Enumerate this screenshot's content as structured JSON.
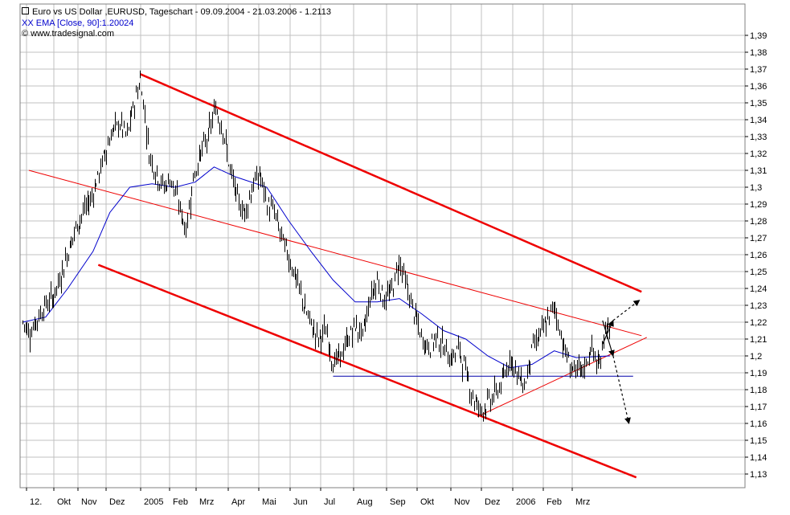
{
  "header": {
    "line1": "Euro vs US Dollar ,EURUSD, Tageschart - 09.09.2004 - 21.03.2006 - 1.2113",
    "line2": "XX EMA [Close, 90]:1.20024",
    "line3": "© www.tradesignal.com"
  },
  "colors": {
    "price": "#000000",
    "ema": "#0000cc",
    "channel": "#ee0000",
    "support": "#0000aa",
    "grid": "#c0c0c0"
  },
  "chart_data": {
    "type": "candlestick",
    "x_tick_labels": [
      "12.",
      "Okt",
      "Nov",
      "Dez",
      "2005",
      "Feb",
      "Mrz",
      "Apr",
      "Mai",
      "Jun",
      "Jul",
      "Aug",
      "Sep",
      "Okt",
      "Nov",
      "Dez",
      "2006",
      "Feb",
      "Mrz"
    ],
    "y_tick_labels": [
      "1,39",
      "1,38",
      "1,37",
      "1,36",
      "1,35",
      "1,34",
      "1,33",
      "1,32",
      "1,31",
      "1,3",
      "1,29",
      "1,28",
      "1,27",
      "1,26",
      "1,25",
      "1,24",
      "1,23",
      "1,22",
      "1,21",
      "1,2",
      "1,19",
      "1,18",
      "1,17",
      "1,16",
      "1,15",
      "1,14",
      "1,13"
    ],
    "ylim": [
      1.125,
      1.397
    ],
    "price_path": [
      [
        "2004-09-09",
        1.22
      ],
      [
        "2004-09-16",
        1.214
      ],
      [
        "2004-09-23",
        1.222
      ],
      [
        "2004-09-30",
        1.23
      ],
      [
        "2004-10-08",
        1.235
      ],
      [
        "2004-10-15",
        1.247
      ],
      [
        "2004-10-22",
        1.262
      ],
      [
        "2004-10-29",
        1.275
      ],
      [
        "2004-11-05",
        1.285
      ],
      [
        "2004-11-12",
        1.292
      ],
      [
        "2004-11-19",
        1.305
      ],
      [
        "2004-11-26",
        1.32
      ],
      [
        "2004-12-03",
        1.333
      ],
      [
        "2004-12-10",
        1.338
      ],
      [
        "2004-12-17",
        1.33
      ],
      [
        "2004-12-24",
        1.35
      ],
      [
        "2004-12-30",
        1.365
      ],
      [
        "2005-01-07",
        1.32
      ],
      [
        "2005-01-14",
        1.308
      ],
      [
        "2005-01-21",
        1.3
      ],
      [
        "2005-01-28",
        1.305
      ],
      [
        "2005-02-04",
        1.29
      ],
      [
        "2005-02-11",
        1.275
      ],
      [
        "2005-02-18",
        1.305
      ],
      [
        "2005-02-25",
        1.32
      ],
      [
        "2005-03-04",
        1.33
      ],
      [
        "2005-03-11",
        1.347
      ],
      [
        "2005-03-18",
        1.335
      ],
      [
        "2005-03-25",
        1.31
      ],
      [
        "2005-04-01",
        1.292
      ],
      [
        "2005-04-08",
        1.285
      ],
      [
        "2005-04-15",
        1.3
      ],
      [
        "2005-04-22",
        1.308
      ],
      [
        "2005-04-29",
        1.29
      ],
      [
        "2005-05-06",
        1.285
      ],
      [
        "2005-05-13",
        1.27
      ],
      [
        "2005-05-20",
        1.258
      ],
      [
        "2005-05-27",
        1.245
      ],
      [
        "2005-06-03",
        1.23
      ],
      [
        "2005-06-10",
        1.218
      ],
      [
        "2005-06-17",
        1.21
      ],
      [
        "2005-06-24",
        1.215
      ],
      [
        "2005-07-01",
        1.195
      ],
      [
        "2005-07-08",
        1.2
      ],
      [
        "2005-07-15",
        1.21
      ],
      [
        "2005-07-22",
        1.218
      ],
      [
        "2005-07-29",
        1.212
      ],
      [
        "2005-08-05",
        1.235
      ],
      [
        "2005-08-12",
        1.245
      ],
      [
        "2005-08-19",
        1.232
      ],
      [
        "2005-08-26",
        1.24
      ],
      [
        "2005-09-02",
        1.257
      ],
      [
        "2005-09-09",
        1.24
      ],
      [
        "2005-09-16",
        1.225
      ],
      [
        "2005-09-23",
        1.21
      ],
      [
        "2005-09-30",
        1.205
      ],
      [
        "2005-10-07",
        1.212
      ],
      [
        "2005-10-14",
        1.205
      ],
      [
        "2005-10-21",
        1.198
      ],
      [
        "2005-10-28",
        1.205
      ],
      [
        "2005-11-04",
        1.19
      ],
      [
        "2005-11-11",
        1.175
      ],
      [
        "2005-11-18",
        1.168
      ],
      [
        "2005-11-25",
        1.172
      ],
      [
        "2005-12-02",
        1.178
      ],
      [
        "2005-12-09",
        1.185
      ],
      [
        "2005-12-16",
        1.2
      ],
      [
        "2005-12-23",
        1.188
      ],
      [
        "2005-12-30",
        1.183
      ],
      [
        "2006-01-06",
        1.205
      ],
      [
        "2006-01-13",
        1.212
      ],
      [
        "2006-01-20",
        1.22
      ],
      [
        "2006-01-27",
        1.23
      ],
      [
        "2006-02-03",
        1.21
      ],
      [
        "2006-02-10",
        1.195
      ],
      [
        "2006-02-17",
        1.19
      ],
      [
        "2006-02-24",
        1.192
      ],
      [
        "2006-03-03",
        1.205
      ],
      [
        "2006-03-10",
        1.192
      ],
      [
        "2006-03-17",
        1.22
      ],
      [
        "2006-03-21",
        1.211
      ]
    ],
    "ema_path": [
      [
        "2004-09-09",
        1.22
      ],
      [
        "2004-10-01",
        1.223
      ],
      [
        "2004-10-22",
        1.24
      ],
      [
        "2004-11-15",
        1.262
      ],
      [
        "2004-12-01",
        1.285
      ],
      [
        "2004-12-20",
        1.3
      ],
      [
        "2005-01-10",
        1.302
      ],
      [
        "2005-02-01",
        1.3
      ],
      [
        "2005-02-20",
        1.303
      ],
      [
        "2005-03-10",
        1.312
      ],
      [
        "2005-03-31",
        1.306
      ],
      [
        "2005-04-29",
        1.3
      ],
      [
        "2005-05-20",
        1.28
      ],
      [
        "2005-06-10",
        1.262
      ],
      [
        "2005-07-01",
        1.245
      ],
      [
        "2005-07-22",
        1.232
      ],
      [
        "2005-08-12",
        1.232
      ],
      [
        "2005-09-02",
        1.234
      ],
      [
        "2005-09-23",
        1.225
      ],
      [
        "2005-10-14",
        1.215
      ],
      [
        "2005-11-04",
        1.21
      ],
      [
        "2005-11-25",
        1.2
      ],
      [
        "2005-12-16",
        1.193
      ],
      [
        "2006-01-06",
        1.195
      ],
      [
        "2006-01-27",
        1.203
      ],
      [
        "2006-02-17",
        1.199
      ],
      [
        "2006-03-21",
        1.2
      ]
    ],
    "annotations": [
      {
        "kind": "channel_upper",
        "from": [
          "2004-12-30",
          1.367
        ],
        "to": [
          "2006-04-20",
          1.238
        ],
        "color": "#ee0000",
        "width": 2.5
      },
      {
        "kind": "channel_middle",
        "from": [
          "2004-09-15",
          1.31
        ],
        "to": [
          "2006-04-20",
          1.212
        ],
        "color": "#ee0000",
        "width": 1
      },
      {
        "kind": "channel_lower",
        "from": [
          "2004-11-20",
          1.254
        ],
        "to": [
          "2006-04-15",
          1.128
        ],
        "color": "#ee0000",
        "width": 2.5
      },
      {
        "kind": "rising_support",
        "from": [
          "2005-11-15",
          1.164
        ],
        "to": [
          "2006-04-25",
          1.211
        ],
        "color": "#ee0000",
        "width": 1
      },
      {
        "kind": "horizontal_support",
        "from": [
          "2005-07-01",
          1.188
        ],
        "to": [
          "2006-04-12",
          1.188
        ],
        "color": "#0000aa",
        "width": 1
      },
      {
        "kind": "scenario_up",
        "points": [
          [
            "2006-03-14",
            1.207
          ],
          [
            "2006-03-24",
            1.221
          ]
        ],
        "style": "solid"
      },
      {
        "kind": "scenario_up_ext",
        "points": [
          [
            "2006-03-24",
            1.221
          ],
          [
            "2006-04-18",
            1.233
          ]
        ],
        "style": "dashed"
      },
      {
        "kind": "scenario_down",
        "points": [
          [
            "2006-03-14",
            1.221
          ],
          [
            "2006-03-24",
            1.2
          ]
        ],
        "style": "solid"
      },
      {
        "kind": "scenario_down_ext",
        "points": [
          [
            "2006-03-24",
            1.2
          ],
          [
            "2006-04-08",
            1.16
          ]
        ],
        "style": "dashed"
      }
    ]
  }
}
